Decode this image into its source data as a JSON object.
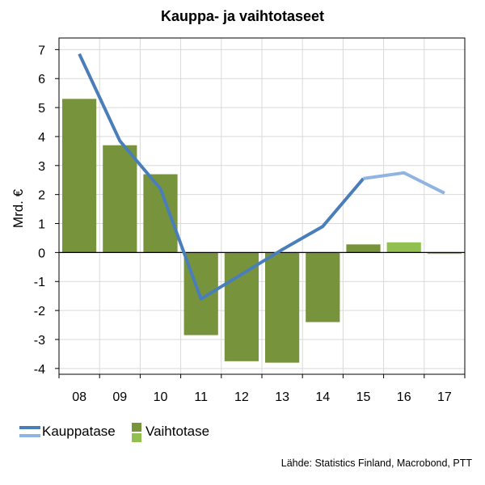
{
  "chart_data": {
    "type": "bar",
    "title": "Kauppa- ja vaihtotaseet",
    "xlabel": "",
    "ylabel": "Mrd. €",
    "categories": [
      "08",
      "09",
      "10",
      "11",
      "12",
      "13",
      "14",
      "15",
      "16",
      "17"
    ],
    "ylim": [
      -4.2,
      7.4
    ],
    "yticks": [
      "7",
      "6",
      "5",
      "4",
      "3",
      "2",
      "1",
      "0",
      "-1",
      "-2",
      "-3",
      "-4"
    ],
    "grid": true,
    "legend_position": "bottom-left",
    "series": [
      {
        "name": "Kauppatase",
        "type": "line",
        "values": [
          6.85,
          3.85,
          2.2,
          -1.6,
          -0.75,
          0.1,
          0.9,
          2.55,
          2.75,
          2.05
        ],
        "forecast_from_index": 8,
        "color": "#4a7ebb",
        "forecast_color": "#8fb4e3"
      },
      {
        "name": "Vaihtotase",
        "type": "bar",
        "values": [
          5.3,
          3.7,
          2.7,
          -2.85,
          -3.75,
          -3.8,
          -2.4,
          0.28,
          0.35,
          -0.05
        ],
        "forecast_from_index": 8,
        "color": "#77933c",
        "forecast_color": "#92c050"
      }
    ]
  },
  "source": "Lähde: Statistics Finland, Macrobond, PTT"
}
